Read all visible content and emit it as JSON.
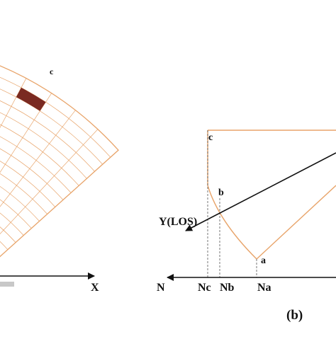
{
  "panel_a": {
    "cell_label": "c",
    "axis_label": "X",
    "colors": {
      "grid": "#e8a46a",
      "highlight": "#7a2a22",
      "axis": "#111111",
      "bar": "#c8c8c8"
    }
  },
  "panel_b": {
    "point_a": "a",
    "point_b": "b",
    "point_c": "c",
    "los_label": "Y(LOS)",
    "axis_label": "N",
    "tick_nc": "Nc",
    "tick_nb": "Nb",
    "tick_na": "Na",
    "panel_tag": "(b)",
    "colors": {
      "curve": "#e8a46a",
      "line": "#111111",
      "dashed": "#555555"
    }
  }
}
